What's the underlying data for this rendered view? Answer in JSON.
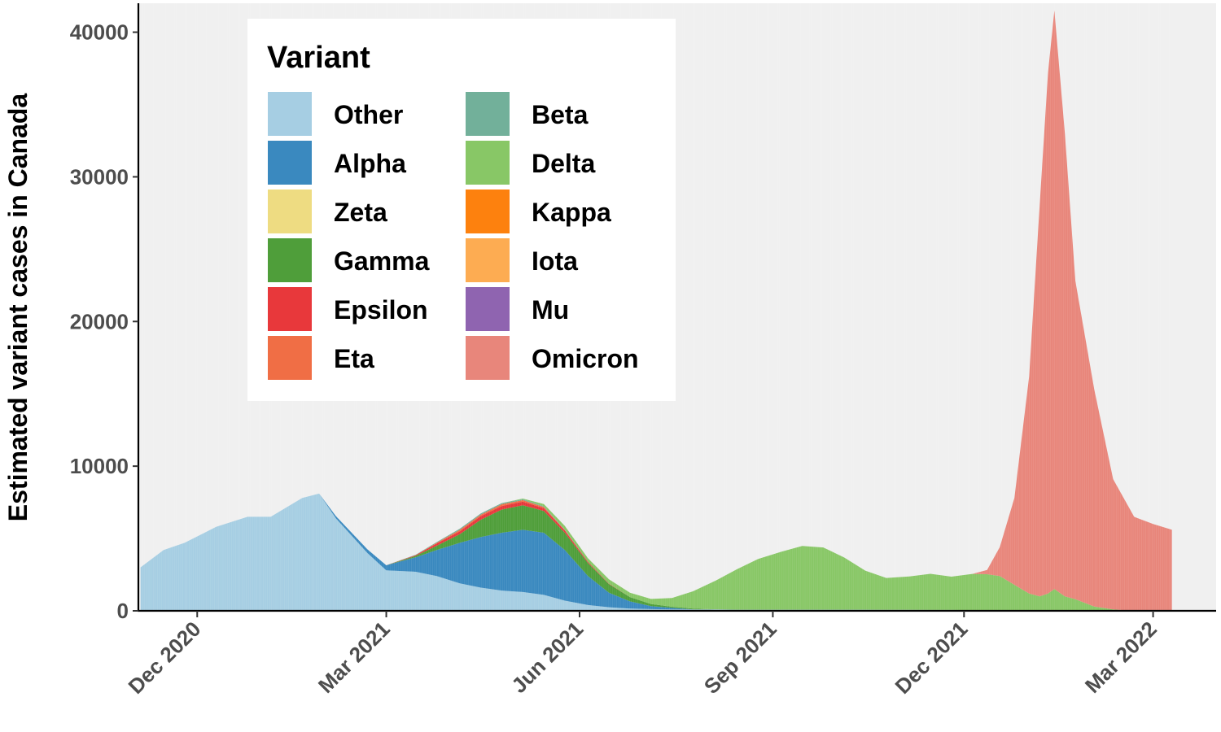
{
  "chart_data": {
    "type": "area",
    "stacked": true,
    "title": "",
    "xlabel": "",
    "ylabel": "Estimated variant cases in Canada",
    "xlim": [
      "2020-11-03",
      "2022-03-31"
    ],
    "ylim": [
      0,
      42000
    ],
    "yticks": [
      0,
      10000,
      20000,
      30000,
      40000
    ],
    "xticks": [
      {
        "date": "2020-12-01",
        "label": "Dec 2020"
      },
      {
        "date": "2021-03-01",
        "label": "Mar 2021"
      },
      {
        "date": "2021-06-01",
        "label": "Jun 2021"
      },
      {
        "date": "2021-09-01",
        "label": "Sep 2021"
      },
      {
        "date": "2021-12-01",
        "label": "Dec 2021"
      },
      {
        "date": "2022-03-01",
        "label": "Mar 2022"
      }
    ],
    "grid": false,
    "panel_background": "#f0f0f0",
    "legend": {
      "title": "Variant",
      "position": "top-left inside",
      "columns": 2,
      "entries": [
        {
          "name": "Other",
          "color": "#a6cee3"
        },
        {
          "name": "Alpha",
          "color": "#3a89bf"
        },
        {
          "name": "Zeta",
          "color": "#eedc82"
        },
        {
          "name": "Gamma",
          "color": "#4f9e3a"
        },
        {
          "name": "Epsilon",
          "color": "#e8383b"
        },
        {
          "name": "Eta",
          "color": "#f06e45"
        },
        {
          "name": "Beta",
          "color": "#72b09a"
        },
        {
          "name": "Delta",
          "color": "#88c766"
        },
        {
          "name": "Kappa",
          "color": "#fd810e"
        },
        {
          "name": "Iota",
          "color": "#fdac52"
        },
        {
          "name": "Mu",
          "color": "#8f64b0"
        },
        {
          "name": "Omicron",
          "color": "#e8867b"
        }
      ]
    },
    "x": [
      "2020-11-04",
      "2020-11-15",
      "2020-11-25",
      "2020-12-10",
      "2020-12-25",
      "2021-01-05",
      "2021-01-20",
      "2021-01-28",
      "2021-02-05",
      "2021-02-20",
      "2021-03-01",
      "2021-03-15",
      "2021-03-25",
      "2021-04-05",
      "2021-04-15",
      "2021-04-25",
      "2021-05-05",
      "2021-05-15",
      "2021-05-25",
      "2021-06-05",
      "2021-06-15",
      "2021-06-25",
      "2021-07-05",
      "2021-07-15",
      "2021-07-25",
      "2021-08-05",
      "2021-08-15",
      "2021-08-25",
      "2021-09-05",
      "2021-09-15",
      "2021-09-25",
      "2021-10-05",
      "2021-10-15",
      "2021-10-25",
      "2021-11-05",
      "2021-11-15",
      "2021-11-25",
      "2021-12-05",
      "2021-12-12",
      "2021-12-18",
      "2021-12-25",
      "2022-01-01",
      "2022-01-06",
      "2022-01-10",
      "2022-01-13",
      "2022-01-18",
      "2022-01-23",
      "2022-02-01",
      "2022-02-10",
      "2022-02-20",
      "2022-03-01",
      "2022-03-10"
    ],
    "series": [
      {
        "name": "Other",
        "values": [
          3000,
          4200,
          4700,
          5800,
          6500,
          6500,
          7800,
          8100,
          6400,
          4000,
          2800,
          2700,
          2400,
          1900,
          1600,
          1400,
          1300,
          1100,
          700,
          400,
          250,
          150,
          120,
          100,
          100,
          100,
          80,
          80,
          80,
          80,
          80,
          80,
          80,
          70,
          70,
          60,
          60,
          50,
          30,
          0,
          0,
          0,
          0,
          0,
          0,
          0,
          0,
          0,
          0,
          0,
          0,
          0
        ]
      },
      {
        "name": "Alpha",
        "values": [
          0,
          0,
          0,
          0,
          0,
          0,
          0,
          0,
          150,
          250,
          350,
          1000,
          1800,
          2800,
          3500,
          4000,
          4300,
          4300,
          3500,
          2000,
          1000,
          500,
          200,
          100,
          0,
          0,
          0,
          0,
          0,
          0,
          0,
          0,
          0,
          0,
          0,
          0,
          0,
          0,
          0,
          0,
          0,
          0,
          0,
          0,
          0,
          0,
          0,
          0,
          0,
          0,
          0,
          0
        ]
      },
      {
        "name": "Zeta",
        "values": [
          0,
          0,
          0,
          0,
          0,
          0,
          0,
          0,
          0,
          0,
          0,
          0,
          0,
          0,
          0,
          0,
          0,
          0,
          0,
          0,
          0,
          0,
          0,
          0,
          0,
          0,
          0,
          0,
          0,
          0,
          0,
          0,
          0,
          0,
          0,
          0,
          0,
          0,
          0,
          0,
          0,
          0,
          0,
          0,
          0,
          0,
          0,
          0,
          0,
          0,
          0,
          0
        ]
      },
      {
        "name": "Gamma",
        "values": [
          0,
          0,
          0,
          0,
          0,
          0,
          0,
          0,
          0,
          0,
          0,
          100,
          300,
          600,
          1200,
          1600,
          1700,
          1500,
          1200,
          900,
          600,
          300,
          150,
          80,
          50,
          0,
          0,
          0,
          0,
          0,
          0,
          0,
          0,
          0,
          0,
          0,
          0,
          0,
          0,
          0,
          0,
          0,
          0,
          0,
          0,
          0,
          0,
          0,
          0,
          0,
          0,
          0
        ]
      },
      {
        "name": "Epsilon",
        "values": [
          0,
          0,
          0,
          0,
          0,
          0,
          0,
          0,
          0,
          0,
          0,
          50,
          150,
          200,
          250,
          250,
          250,
          200,
          150,
          80,
          30,
          0,
          0,
          0,
          0,
          0,
          0,
          0,
          0,
          0,
          0,
          0,
          0,
          0,
          0,
          0,
          0,
          0,
          0,
          0,
          0,
          0,
          0,
          0,
          0,
          0,
          0,
          0,
          0,
          0,
          0,
          0
        ]
      },
      {
        "name": "Eta",
        "values": [
          0,
          0,
          0,
          0,
          0,
          0,
          0,
          0,
          0,
          0,
          0,
          0,
          50,
          100,
          100,
          120,
          100,
          80,
          40,
          0,
          0,
          0,
          0,
          0,
          0,
          0,
          0,
          0,
          0,
          0,
          0,
          0,
          0,
          0,
          0,
          0,
          0,
          0,
          0,
          0,
          0,
          0,
          0,
          0,
          0,
          0,
          0,
          0,
          0,
          0,
          0,
          0
        ]
      },
      {
        "name": "Beta",
        "values": [
          0,
          0,
          0,
          0,
          0,
          0,
          0,
          0,
          0,
          0,
          0,
          30,
          50,
          80,
          80,
          80,
          60,
          50,
          30,
          0,
          0,
          0,
          0,
          0,
          0,
          0,
          0,
          0,
          0,
          0,
          0,
          0,
          0,
          0,
          0,
          0,
          0,
          0,
          0,
          0,
          0,
          0,
          0,
          0,
          0,
          0,
          0,
          0,
          0,
          0,
          0,
          0
        ]
      },
      {
        "name": "Delta",
        "values": [
          0,
          0,
          0,
          0,
          0,
          0,
          0,
          0,
          0,
          0,
          0,
          0,
          0,
          0,
          0,
          0,
          50,
          150,
          250,
          250,
          300,
          300,
          350,
          600,
          1200,
          2000,
          2800,
          3500,
          4000,
          4400,
          4300,
          3600,
          2700,
          2200,
          2300,
          2500,
          2300,
          2500,
          2500,
          2400,
          1800,
          1200,
          1000,
          1200,
          1500,
          1000,
          800,
          300,
          100,
          0,
          0,
          0
        ]
      },
      {
        "name": "Kappa",
        "values": [
          0,
          0,
          0,
          0,
          0,
          0,
          0,
          0,
          0,
          0,
          0,
          0,
          0,
          0,
          0,
          0,
          0,
          0,
          0,
          0,
          0,
          0,
          0,
          0,
          0,
          0,
          0,
          0,
          0,
          0,
          0,
          0,
          0,
          0,
          0,
          0,
          0,
          0,
          0,
          0,
          0,
          0,
          0,
          0,
          0,
          0,
          0,
          0,
          0,
          0,
          0,
          0
        ]
      },
      {
        "name": "Iota",
        "values": [
          0,
          0,
          0,
          0,
          0,
          0,
          0,
          0,
          0,
          0,
          0,
          0,
          0,
          0,
          0,
          0,
          0,
          0,
          0,
          0,
          0,
          0,
          0,
          0,
          0,
          0,
          0,
          0,
          0,
          0,
          0,
          0,
          0,
          0,
          0,
          0,
          0,
          0,
          0,
          0,
          0,
          0,
          0,
          0,
          0,
          0,
          0,
          0,
          0,
          0,
          0,
          0
        ]
      },
      {
        "name": "Mu",
        "values": [
          0,
          0,
          0,
          0,
          0,
          0,
          0,
          0,
          0,
          0,
          0,
          0,
          0,
          0,
          0,
          0,
          0,
          0,
          0,
          0,
          0,
          0,
          0,
          0,
          0,
          0,
          0,
          0,
          0,
          0,
          0,
          0,
          0,
          0,
          0,
          0,
          0,
          0,
          0,
          0,
          0,
          0,
          0,
          0,
          0,
          0,
          0,
          0,
          0,
          0,
          0,
          0
        ]
      },
      {
        "name": "Omicron",
        "values": [
          0,
          0,
          0,
          0,
          0,
          0,
          0,
          0,
          0,
          0,
          0,
          0,
          0,
          0,
          0,
          0,
          0,
          0,
          0,
          0,
          0,
          0,
          0,
          0,
          0,
          0,
          0,
          0,
          0,
          0,
          0,
          0,
          0,
          0,
          0,
          0,
          0,
          0,
          300,
          2000,
          6000,
          15000,
          27000,
          36000,
          40000,
          32000,
          22000,
          15000,
          9000,
          6500,
          6000,
          5600
        ]
      }
    ]
  }
}
